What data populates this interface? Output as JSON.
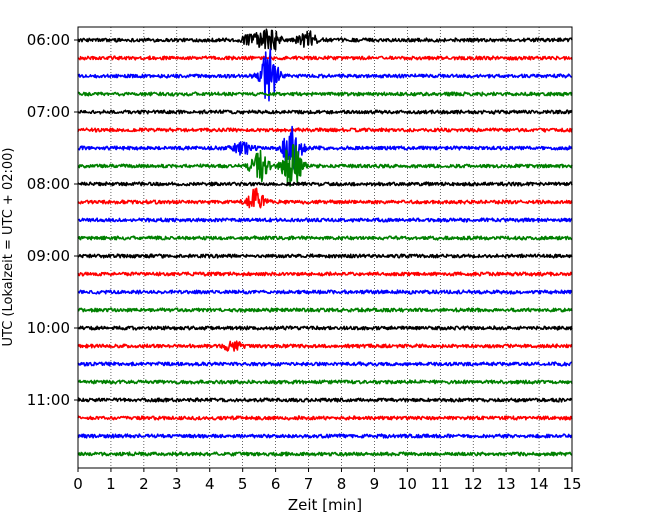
{
  "chart_data": {
    "type": "line",
    "xlabel": "Zeit  [min]",
    "ylabel": "UTC (Lokalzeit = UTC + 02:00)",
    "xlim": [
      0,
      15
    ],
    "x_ticks": [
      0,
      1,
      2,
      3,
      4,
      5,
      6,
      7,
      8,
      9,
      10,
      11,
      12,
      13,
      14,
      15
    ],
    "y_tick_labels": [
      "06:00",
      "07:00",
      "08:00",
      "09:00",
      "10:00",
      "11:00"
    ],
    "y_tick_trace_index": [
      0,
      4,
      8,
      12,
      16,
      20
    ],
    "grid": "vertical dotted at each minute",
    "legend": "none",
    "trace_colors": [
      "#000000",
      "#ff0000",
      "#0000ff",
      "#008000"
    ],
    "trace_count": 24,
    "trace_interval_min": 15,
    "events": [
      {
        "trace": 0,
        "t": 5.3,
        "amp": 0.5
      },
      {
        "trace": 0,
        "t": 5.85,
        "amp": 0.75
      },
      {
        "trace": 0,
        "t": 6.95,
        "amp": 0.55
      },
      {
        "trace": 2,
        "t": 5.8,
        "amp": 1.8
      },
      {
        "trace": 6,
        "t": 5.0,
        "amp": 0.45
      },
      {
        "trace": 6,
        "t": 6.5,
        "amp": 1.5
      },
      {
        "trace": 7,
        "t": 5.5,
        "amp": 1.0
      },
      {
        "trace": 7,
        "t": 6.5,
        "amp": 1.6
      },
      {
        "trace": 9,
        "t": 5.4,
        "amp": 0.75
      },
      {
        "trace": 17,
        "t": 4.7,
        "amp": 0.3
      }
    ]
  }
}
